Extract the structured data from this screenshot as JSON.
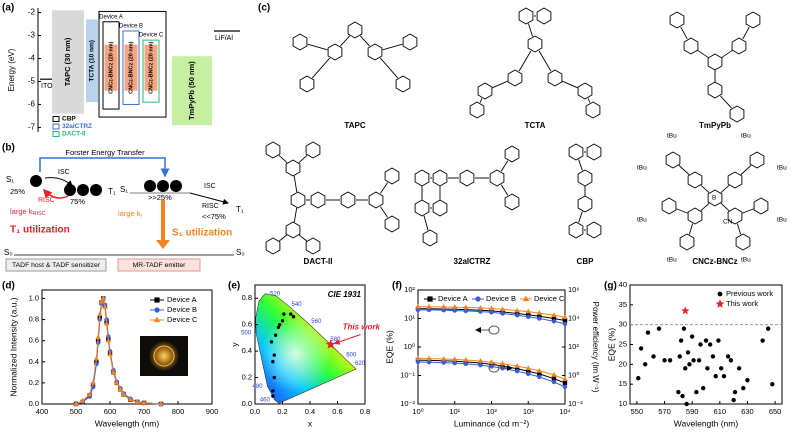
{
  "panel_labels": [
    "(a)",
    "(b)",
    "(c)",
    "(d)",
    "(e)",
    "(f)",
    "(g)"
  ],
  "panel_a": {
    "y_label": "Energy (eV)",
    "ylim": [
      -7.2,
      -1.8
    ],
    "yticks": [
      -2,
      -3,
      -4,
      -5,
      -6,
      -7
    ],
    "electrodes": [
      {
        "label": "ITO",
        "level": -4.9
      },
      {
        "label": "LiF/Al",
        "level": -2.8
      }
    ],
    "layers": [
      {
        "label": "TAPC (30 nm)",
        "top": -1.9,
        "bottom": -6.4,
        "color": "#d9d9d9"
      },
      {
        "label": "TCTA (10 nm)",
        "top": -2.3,
        "bottom": -5.9,
        "color": "#b7d3ee"
      },
      {
        "label": "TmPyPb (50 nm)",
        "top": -3.9,
        "bottom": -6.9,
        "color": "#c6efa2"
      }
    ],
    "emitter": {
      "label": "CNCz-BNCz (20 nm)",
      "top": -3.4,
      "bottom": -5.4,
      "color": "#f4a582"
    },
    "devices": [
      {
        "label": "Device A",
        "host_top": -2.4,
        "host_bottom": -6.2
      },
      {
        "label": "Device B",
        "host_top": -2.8,
        "host_bottom": -6.0
      },
      {
        "label": "Device C",
        "host_top": -3.2,
        "host_bottom": -5.9
      }
    ],
    "hosts": [
      {
        "label": "CBP",
        "color": "#000000"
      },
      {
        "label": "32alCTRZ",
        "color": "#3d6fd0"
      },
      {
        "label": "DACT-II",
        "color": "#2bb673"
      }
    ]
  },
  "panel_b": {
    "title": "Forster Energy Transfer",
    "host": {
      "s1": "S₁",
      "singlet_share": "25%",
      "isc": "ISC",
      "triplet_share": "75%",
      "t1": "T₁",
      "risc": "RISC",
      "rate": {
        "text": "large k",
        "sub": "RISC"
      },
      "utilization": "T₁ utilization",
      "s0": "S₀",
      "box": "TADF host & TADF sensitizer"
    },
    "emitter": {
      "s1": "S₁",
      "singlet_share": ">>25%",
      "isc": "ISC",
      "risc": "RISC",
      "triplet_share": "<<75%",
      "t1": "T₁",
      "rate": {
        "text": "large k",
        "sub": "r"
      },
      "utilization": "S₁ utilization",
      "s0": "S₀",
      "box": "MR-TADF emitter"
    }
  },
  "panel_c": {
    "molecules": [
      "TAPC",
      "TCTA",
      "TmPyPb",
      "DACT-II",
      "32alCTRZ",
      "CBP",
      "CNCz-BNCz"
    ],
    "cncz_labels": [
      "tBu",
      "tBu",
      "tBu",
      "tBu",
      "tBu",
      "tBu",
      "tBu",
      "tBu",
      "B",
      "CN"
    ]
  },
  "chart_data": [
    {
      "type": "line",
      "x_label": "Wavelength (nm)",
      "y_label": "Normalized Intensity (a.u.)",
      "x": [
        500,
        520,
        540,
        550,
        560,
        565,
        570,
        575,
        580,
        585,
        590,
        595,
        600,
        610,
        620,
        630,
        640,
        660,
        680,
        700,
        750
      ],
      "xlim": [
        400,
        900
      ],
      "xticks": [
        400,
        500,
        600,
        700,
        800,
        900
      ],
      "ylim": [
        0,
        1.08
      ],
      "yticks": [
        {
          "value": 0,
          "label": "0.0"
        },
        0.2,
        0.4,
        0.6,
        0.8,
        {
          "value": 1,
          "label": "1.0"
        }
      ],
      "legend": "upper right",
      "series": [
        {
          "name": "Device A",
          "color": "#000000",
          "marker": "square",
          "values": [
            0,
            0.02,
            0.08,
            0.18,
            0.4,
            0.6,
            0.82,
            0.96,
            1.0,
            0.93,
            0.78,
            0.62,
            0.48,
            0.3,
            0.2,
            0.14,
            0.09,
            0.04,
            0.02,
            0.01,
            0
          ]
        },
        {
          "name": "Device B",
          "color": "#3b5bdb",
          "marker": "circle",
          "values": [
            0,
            0.02,
            0.07,
            0.16,
            0.38,
            0.58,
            0.8,
            0.95,
            1.0,
            0.94,
            0.8,
            0.64,
            0.5,
            0.32,
            0.21,
            0.15,
            0.1,
            0.05,
            0.02,
            0.01,
            0
          ]
        },
        {
          "name": "Device C",
          "color": "#f58220",
          "marker": "triangle",
          "values": [
            0,
            0.03,
            0.09,
            0.2,
            0.43,
            0.63,
            0.85,
            0.97,
            1.0,
            0.92,
            0.76,
            0.6,
            0.47,
            0.3,
            0.2,
            0.14,
            0.09,
            0.04,
            0.02,
            0.01,
            0
          ]
        }
      ]
    },
    {
      "type": "scatter",
      "title": "CIE 1931",
      "x_label": "x",
      "y_label": "y",
      "xlim": [
        0,
        0.8
      ],
      "xticks": [
        {
          "value": 0,
          "label": "0.0"
        },
        0.2,
        0.4,
        0.6,
        0.8
      ],
      "ylim": [
        0,
        0.9
      ],
      "yticks": [
        {
          "value": 0,
          "label": "0.0"
        },
        0.2,
        0.4,
        0.6,
        0.8
      ],
      "wavelength_labels": [
        {
          "nm": 460,
          "x": 0.144,
          "y": 0.03
        },
        {
          "nm": 480,
          "x": 0.091,
          "y": 0.133
        },
        {
          "nm": 500,
          "x": 0.008,
          "y": 0.538
        },
        {
          "nm": 520,
          "x": 0.074,
          "y": 0.834
        },
        {
          "nm": 540,
          "x": 0.23,
          "y": 0.754
        },
        {
          "nm": 560,
          "x": 0.373,
          "y": 0.624
        },
        {
          "nm": 580,
          "x": 0.512,
          "y": 0.487
        },
        {
          "nm": 600,
          "x": 0.627,
          "y": 0.372
        },
        {
          "nm": 620,
          "x": 0.691,
          "y": 0.308
        }
      ],
      "points": {
        "color": "#000000",
        "x": [
          0.13,
          0.13,
          0.14,
          0.13,
          0.14,
          0.12,
          0.15,
          0.17,
          0.18,
          0.2,
          0.21,
          0.26,
          0.28
        ],
        "values": [
          0.06,
          0.1,
          0.2,
          0.32,
          0.37,
          0.47,
          0.52,
          0.58,
          0.6,
          0.63,
          0.68,
          0.68,
          0.66
        ]
      },
      "this_work": {
        "label": "This work",
        "color": "#e8202a",
        "x": 0.55,
        "y": 0.45
      }
    },
    {
      "type": "line",
      "x_label": "Luminance (cd m⁻²)",
      "y_label": "EQE (%)",
      "y2_label": "Power efficiency (lm W⁻¹)",
      "log_scale": {
        "x": true,
        "y": true,
        "y2": true
      },
      "x": [
        1,
        2,
        5,
        10,
        20,
        50,
        100,
        200,
        500,
        1000,
        2000,
        5000,
        10000
      ],
      "xlim": [
        1,
        10000
      ],
      "xticks": [
        {
          "value": 1,
          "label": "10⁰"
        },
        {
          "value": 10,
          "label": "10¹"
        },
        {
          "value": 100,
          "label": "10²"
        },
        {
          "value": 1000,
          "label": "10³"
        },
        {
          "value": 10000,
          "label": "10⁴"
        }
      ],
      "ylim": [
        0.01,
        100
      ],
      "yticks": [
        {
          "value": 0.01,
          "label": "10⁻²"
        },
        {
          "value": 0.1,
          "label": "10⁻¹"
        },
        {
          "value": 1,
          "label": "10⁰"
        },
        {
          "value": 10,
          "label": "10¹"
        },
        {
          "value": 100,
          "label": "10²"
        }
      ],
      "y2lim": [
        0.01,
        1000000
      ],
      "y2ticks": [
        {
          "value": 0.01,
          "label": "10⁻²"
        },
        {
          "value": 1,
          "label": "10⁰"
        },
        {
          "value": 100,
          "label": "10²"
        },
        {
          "value": 10000,
          "label": "10⁴"
        },
        {
          "value": 1000000,
          "label": "10⁶"
        }
      ],
      "legend": "top",
      "series": [
        {
          "name": "Device A",
          "color": "#000000",
          "marker": "square",
          "values": [
            22,
            22,
            21.5,
            21,
            20.5,
            19.5,
            18.5,
            17,
            15,
            13.5,
            12,
            10,
            8.5
          ],
          "y2_values": [
            12,
            11.5,
            10.8,
            10,
            9,
            7.5,
            6,
            4.6,
            3,
            2,
            1.3,
            0.6,
            0.3
          ]
        },
        {
          "name": "Device B",
          "color": "#3b5bdb",
          "marker": "circle",
          "values": [
            20,
            20,
            19.5,
            19,
            18.5,
            17.5,
            16.5,
            15,
            13,
            11.5,
            10,
            8,
            6.5
          ],
          "y2_values": [
            9,
            8.6,
            8,
            7.4,
            6.6,
            5.4,
            4.3,
            3.2,
            2,
            1.3,
            0.8,
            0.35,
            0.16
          ]
        },
        {
          "name": "Device C",
          "color": "#f58220",
          "marker": "triangle",
          "values": [
            26,
            26,
            25.5,
            25,
            24.5,
            23.5,
            22.5,
            21,
            19,
            17.5,
            15.5,
            13,
            11
          ],
          "y2_values": [
            16,
            15.4,
            14.5,
            13.5,
            12.3,
            10.4,
            8.6,
            6.8,
            4.6,
            3.2,
            2.1,
            1.1,
            0.55
          ]
        }
      ]
    },
    {
      "type": "scatter",
      "x_label": "Wavelength (nm)",
      "y_label": "EQE (%)",
      "xlim": [
        545,
        655
      ],
      "xticks": [
        550,
        570,
        590,
        610,
        630,
        650
      ],
      "ylim": [
        10,
        40
      ],
      "yticks": [
        10,
        15,
        20,
        25,
        30,
        35,
        40
      ],
      "reference_line": 30,
      "legend": "upper right",
      "series": [
        {
          "name": "Previous work",
          "color": "#000000",
          "marker": "circle",
          "x": [
            551,
            553,
            556,
            558,
            562,
            566,
            570,
            574,
            580,
            581,
            582,
            583,
            584,
            585,
            586,
            587,
            588,
            590,
            591,
            593,
            595,
            596,
            598,
            600,
            601,
            603,
            605,
            607,
            609,
            611,
            613,
            616,
            618,
            620,
            621,
            624,
            627,
            630,
            641,
            645,
            648
          ],
          "values": [
            16.5,
            24,
            20,
            28,
            22,
            29,
            21,
            21,
            13,
            22,
            26,
            12,
            29,
            19,
            10,
            23,
            20,
            27,
            21,
            13,
            21,
            25,
            14,
            26,
            19,
            25,
            22,
            17,
            26,
            19,
            17,
            22,
            21,
            11,
            13,
            19,
            14,
            16,
            26,
            29,
            15
          ]
        },
        {
          "name": "This work",
          "color": "#e8202a",
          "marker": "star",
          "x": [
            585
          ],
          "values": [
            33.5
          ]
        }
      ]
    }
  ]
}
